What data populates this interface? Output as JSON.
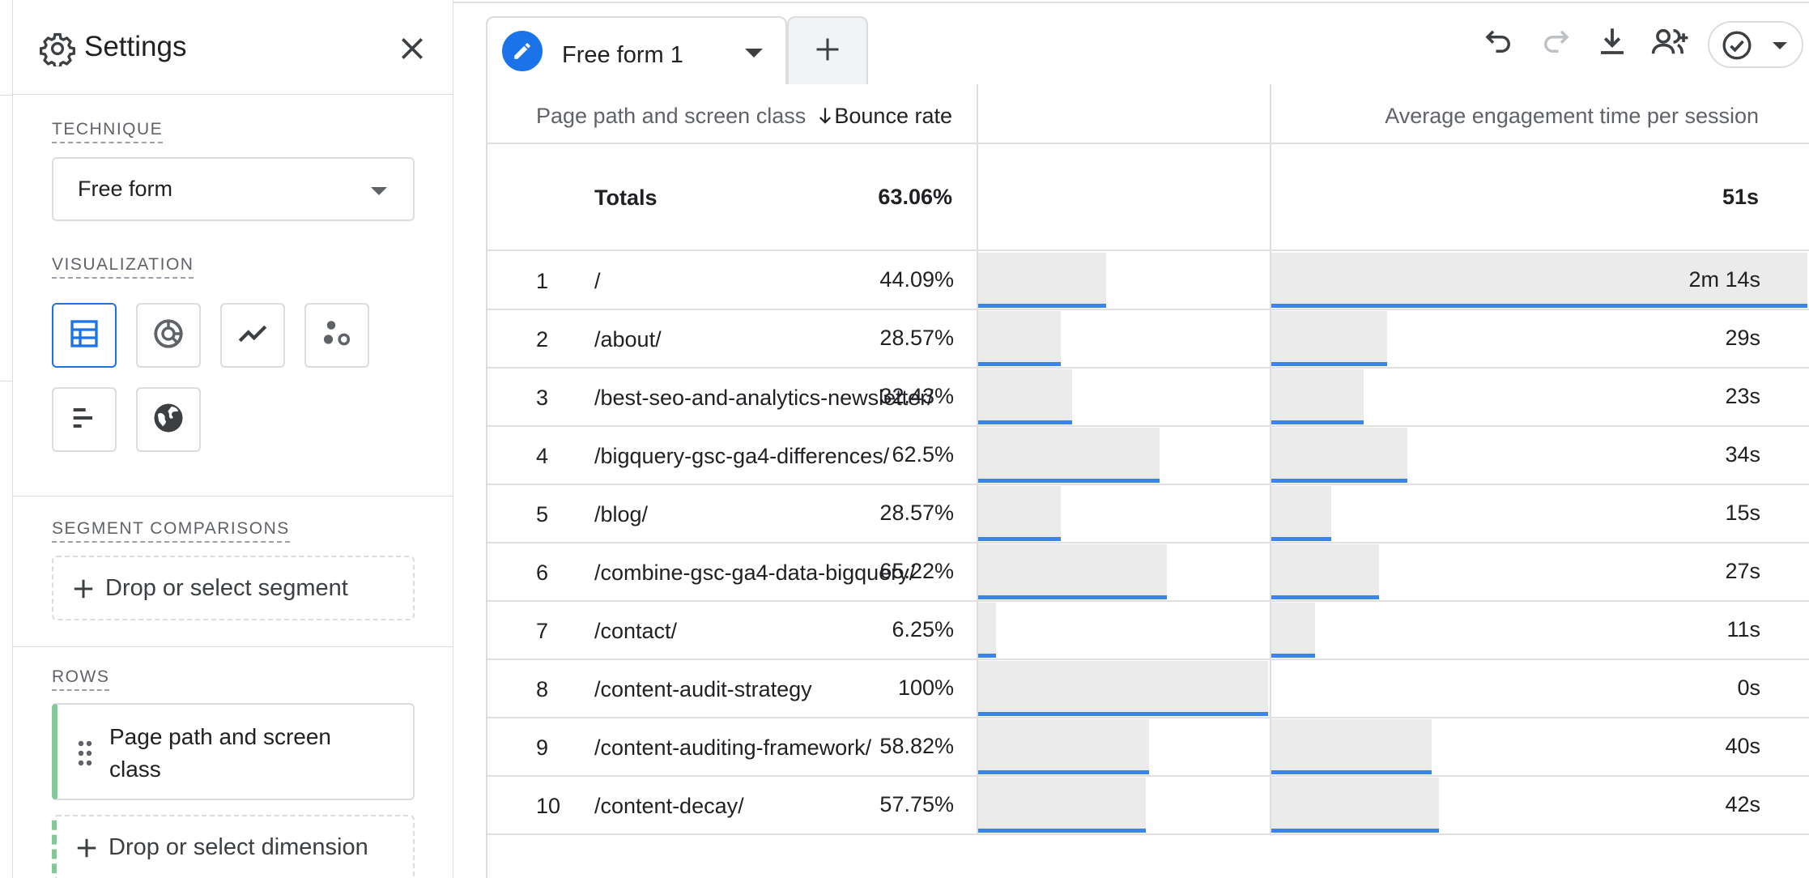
{
  "settings": {
    "title": "Settings",
    "technique_label": "TECHNIQUE",
    "technique_value": "Free form",
    "visualization_label": "VISUALIZATION",
    "visualization_options": [
      "table-icon",
      "donut-chart-icon",
      "line-chart-icon",
      "scatter-icon",
      "bar-chart-icon",
      "globe-icon"
    ],
    "segment_label": "SEGMENT COMPARISONS",
    "segment_drop": "Drop or select segment",
    "rows_label": "ROWS",
    "row_item": "Page path and screen class",
    "dimension_drop": "Drop or select dimension"
  },
  "tabs": {
    "active_label": "Free form 1"
  },
  "table": {
    "headers": {
      "dimension": "Page path and screen class",
      "metric1": "Bounce rate",
      "metric2": "Average engagement time per session"
    },
    "totals": {
      "label": "Totals",
      "bounce": "63.06%",
      "engagement": "51s"
    },
    "rows": [
      {
        "idx": "1",
        "path": "/",
        "bounce": "44.09%",
        "bounce_frac": 0.4409,
        "eng": "2m 14s",
        "eng_frac": 1.0
      },
      {
        "idx": "2",
        "path": "/about/",
        "bounce": "28.57%",
        "bounce_frac": 0.2857,
        "eng": "29s",
        "eng_frac": 0.2164
      },
      {
        "idx": "3",
        "path": "/best-seo-and-analytics-newsletter/",
        "bounce": "32.43%",
        "bounce_frac": 0.3243,
        "eng": "23s",
        "eng_frac": 0.1716
      },
      {
        "idx": "4",
        "path": "/bigquery-gsc-ga4-differences/",
        "bounce": "62.5%",
        "bounce_frac": 0.625,
        "eng": "34s",
        "eng_frac": 0.2537
      },
      {
        "idx": "5",
        "path": "/blog/",
        "bounce": "28.57%",
        "bounce_frac": 0.2857,
        "eng": "15s",
        "eng_frac": 0.1119
      },
      {
        "idx": "6",
        "path": "/combine-gsc-ga4-data-bigquery/",
        "bounce": "65.22%",
        "bounce_frac": 0.6522,
        "eng": "27s",
        "eng_frac": 0.2015
      },
      {
        "idx": "7",
        "path": "/contact/",
        "bounce": "6.25%",
        "bounce_frac": 0.0625,
        "eng": "11s",
        "eng_frac": 0.0821
      },
      {
        "idx": "8",
        "path": "/content-audit-strategy",
        "bounce": "100%",
        "bounce_frac": 1.0,
        "eng": "0s",
        "eng_frac": 0.0
      },
      {
        "idx": "9",
        "path": "/content-auditing-framework/",
        "bounce": "58.82%",
        "bounce_frac": 0.5882,
        "eng": "40s",
        "eng_frac": 0.2985
      },
      {
        "idx": "10",
        "path": "/content-decay/",
        "bounce": "57.75%",
        "bounce_frac": 0.5775,
        "eng": "42s",
        "eng_frac": 0.3134
      }
    ]
  },
  "colors": {
    "accent": "#1a73e8",
    "rows_accent": "#81c995",
    "bar_bg": "#ebebeb"
  }
}
